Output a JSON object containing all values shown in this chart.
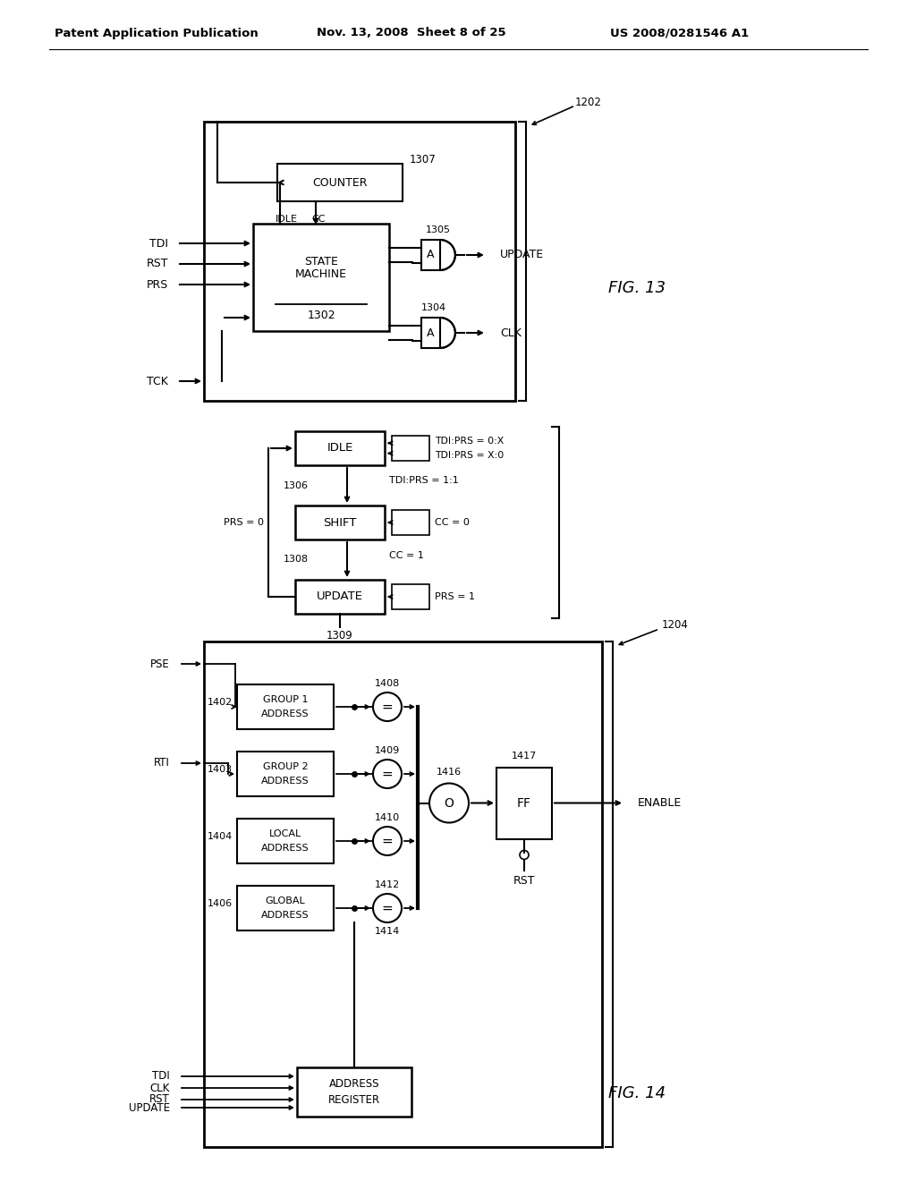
{
  "header_left": "Patent Application Publication",
  "header_mid": "Nov. 13, 2008  Sheet 8 of 25",
  "header_right": "US 2008/0281546 A1",
  "fig13_label": "FIG. 13",
  "fig14_label": "FIG. 14",
  "bg_color": "#ffffff",
  "line_color": "#000000"
}
